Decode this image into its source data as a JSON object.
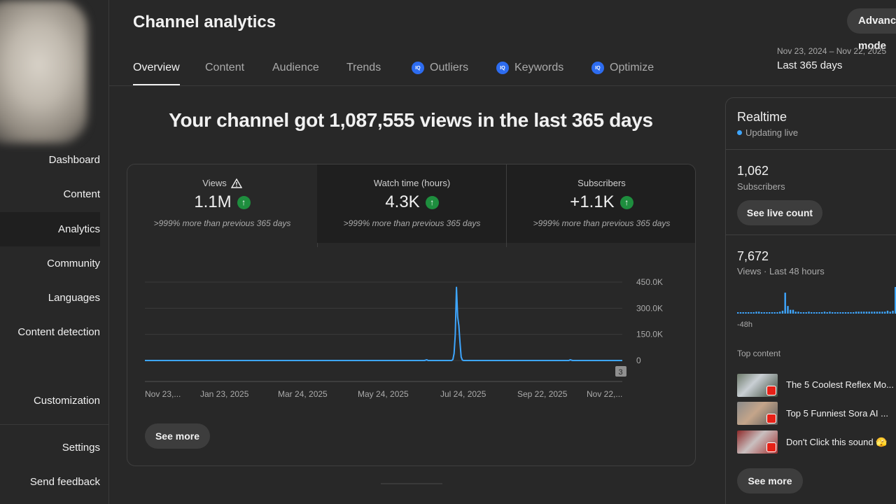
{
  "sidebar": {
    "items": [
      {
        "label": "Dashboard"
      },
      {
        "label": "Content"
      },
      {
        "label": "Analytics"
      },
      {
        "label": "Community"
      },
      {
        "label": "Languages"
      },
      {
        "label": "Content detection"
      },
      {
        "label": "Customization"
      },
      {
        "label": "Settings"
      },
      {
        "label": "Send feedback"
      }
    ]
  },
  "header": {
    "title": "Channel analytics",
    "advanced_label": "Advanced mode",
    "date_range": "Nov 23, 2024 – Nov 22, 2025",
    "date_label": "Last 365 days"
  },
  "tabs": [
    {
      "label": "Overview",
      "active": true
    },
    {
      "label": "Content"
    },
    {
      "label": "Audience"
    },
    {
      "label": "Trends"
    },
    {
      "label": "Outliers",
      "icon": "iq-icon"
    },
    {
      "label": "Keywords",
      "icon": "iq-icon"
    },
    {
      "label": "Optimize",
      "icon": "iq-icon"
    }
  ],
  "iq_icon_text": "IQ",
  "headline": "Your channel got 1,087,555 views in the last 365 days",
  "metrics": [
    {
      "label": "Views",
      "value": "1.1M",
      "compare": ">999% more than previous 365 days",
      "icon": "warning-icon"
    },
    {
      "label": "Watch time (hours)",
      "value": "4.3K",
      "compare": ">999% more than previous 365 days"
    },
    {
      "label": "Subscribers",
      "value": "+1.1K",
      "compare": ">999% more than previous 365 days"
    }
  ],
  "chart_data": {
    "type": "line",
    "x_tick_labels": [
      "Nov 23,...",
      "Jan 23, 2025",
      "Mar 24, 2025",
      "May 24, 2025",
      "Jul 24, 2025",
      "Sep 22, 2025",
      "Nov 22,..."
    ],
    "y_tick_labels": [
      "450.0K",
      "300.0K",
      "150.0K",
      "0"
    ],
    "ylim": [
      0,
      450000
    ],
    "series": [
      {
        "values": [
          0,
          0,
          0,
          0,
          0,
          0,
          0,
          0,
          0,
          0,
          0,
          0,
          0,
          0,
          0,
          0,
          0,
          0,
          0,
          0,
          0,
          0,
          0,
          0,
          0,
          0,
          0,
          0,
          0,
          0,
          0,
          0,
          0,
          0,
          0,
          0,
          0,
          0,
          0,
          0,
          0,
          0,
          0,
          0,
          0,
          0,
          0,
          0,
          0,
          0,
          0,
          0,
          0,
          0,
          0,
          0,
          0,
          0,
          0,
          0,
          0,
          0,
          0,
          0,
          0,
          0,
          0,
          0,
          0,
          0,
          0,
          0,
          0,
          0,
          0,
          0,
          0,
          0,
          0,
          0,
          0,
          0,
          0,
          0,
          0,
          0,
          0,
          0,
          0,
          0,
          0,
          0,
          0,
          0,
          0,
          0,
          0,
          0,
          0,
          0,
          0,
          0,
          0,
          0,
          0,
          0,
          0,
          0,
          0,
          0,
          0,
          0,
          0,
          0,
          0,
          0,
          0,
          0,
          0,
          0,
          0,
          0,
          0,
          0,
          0,
          0,
          0,
          0,
          0,
          0,
          0,
          0,
          0,
          0,
          0,
          0,
          0,
          0,
          0,
          0,
          0,
          0,
          0,
          0,
          0,
          0,
          0,
          0,
          0,
          0,
          0,
          0,
          0,
          0,
          0,
          0,
          0,
          0,
          0,
          0,
          0,
          0,
          0,
          0,
          0,
          0,
          0,
          0,
          0,
          0,
          0,
          0,
          0,
          0,
          0,
          0,
          0,
          0,
          0,
          0,
          0,
          0,
          0,
          0,
          0,
          0,
          0,
          0,
          0,
          0,
          0,
          0,
          0,
          0,
          0,
          0,
          0,
          0,
          0,
          0,
          0,
          0,
          0,
          0,
          0,
          0,
          0,
          0,
          0,
          0,
          0,
          0,
          0,
          0,
          0,
          0,
          0,
          0,
          0,
          0,
          0,
          0,
          0,
          0,
          0,
          0,
          0,
          0,
          0,
          0,
          0,
          0,
          0,
          0,
          0,
          0,
          0,
          0,
          0,
          0,
          0,
          0,
          0,
          0,
          0,
          0,
          0,
          0,
          0,
          0,
          0,
          0,
          0,
          0,
          0,
          0,
          0,
          0,
          0,
          0,
          0,
          0,
          0,
          0,
          0,
          0,
          0,
          0,
          0,
          0,
          0,
          0,
          0,
          0,
          0,
          0,
          0,
          0,
          0,
          0,
          0,
          0,
          0,
          0,
          0,
          0,
          0,
          0,
          0,
          0,
          0,
          0,
          0,
          0,
          0,
          0,
          0,
          0,
          0,
          0,
          0,
          0,
          0,
          0,
          0,
          0,
          0,
          0,
          0,
          0,
          0,
          0,
          0,
          0,
          0,
          0,
          0,
          0,
          0,
          0,
          0,
          0,
          0,
          0,
          0,
          0,
          0,
          0,
          0,
          0,
          0,
          0,
          0,
          0,
          0,
          0,
          0,
          0,
          0,
          0,
          0,
          0,
          0,
          0,
          0,
          0,
          0,
          0,
          0,
          0,
          0,
          0,
          0,
          0,
          0,
          0,
          0,
          0,
          0,
          0,
          0,
          0,
          0,
          0,
          0,
          0,
          0,
          0,
          0,
          0,
          0,
          0,
          0,
          0,
          0,
          0,
          0,
          0,
          0,
          0,
          0,
          0,
          0,
          0,
          0,
          0,
          0,
          0,
          0,
          0,
          0,
          0,
          0,
          0,
          0,
          0,
          0,
          0,
          0,
          0,
          0,
          0,
          0,
          0
        ]
      }
    ],
    "spike": [
      {
        "day": 237,
        "value": 2000
      },
      {
        "day": 238,
        "value": 4000
      },
      {
        "day": 239,
        "value": 0
      },
      {
        "day": 260,
        "value": 6000
      },
      {
        "day": 261,
        "value": 40000
      },
      {
        "day": 262,
        "value": 150000
      },
      {
        "day": 263,
        "value": 420000
      },
      {
        "day": 264,
        "value": 250000
      },
      {
        "day": 265,
        "value": 200000
      },
      {
        "day": 266,
        "value": 100000
      },
      {
        "day": 267,
        "value": 20000
      },
      {
        "day": 268,
        "value": 3000
      },
      {
        "day": 359,
        "value": 4000
      },
      {
        "day": 360,
        "value": 2000
      }
    ],
    "marker_label": "3"
  },
  "see_more_label": "See more",
  "realtime": {
    "title": "Realtime",
    "status": "Updating live",
    "subscribers": "1,062",
    "subscribers_label": "Subscribers",
    "live_count_label": "See live count",
    "views": "7,672",
    "views_label": "Views · Last 48 hours",
    "hours_label": "-48h",
    "bars": [
      1,
      1,
      1,
      1,
      1,
      1,
      1,
      2,
      2,
      1,
      1,
      1,
      1,
      1,
      1,
      1,
      2,
      3,
      22,
      8,
      4,
      4,
      2,
      2,
      1,
      1,
      1,
      2,
      1,
      1,
      1,
      1,
      1,
      2,
      1,
      2,
      1,
      1,
      1,
      1,
      1,
      1,
      1,
      1,
      1,
      2,
      2,
      2,
      2,
      2,
      2,
      2,
      2,
      2,
      2,
      2,
      2,
      3,
      2,
      3,
      28,
      10,
      4,
      2
    ],
    "top_content_label": "Top content",
    "videos": [
      {
        "title": "The 5 Coolest Reflex Mo..."
      },
      {
        "title": "Top 5 Funniest Sora AI ..."
      },
      {
        "title": "Don't Click this sound 🫣"
      }
    ],
    "see_more_label": "See more"
  },
  "colors": {
    "accent": "#3ea6ff",
    "up": "#1e8e3e",
    "iq": "#2d6cf0",
    "background": "#282828"
  }
}
